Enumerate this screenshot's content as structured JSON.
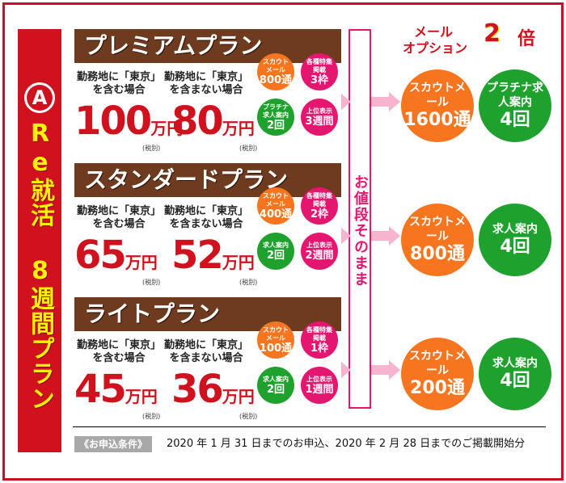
{
  "sidebar": {
    "badge": "A",
    "title": "Re就活 8週間プラン"
  },
  "option": {
    "title_line1": "メール",
    "title_line2": "オプション",
    "multiplier": "2",
    "multiplier_unit": "倍"
  },
  "middle_label": "お値段そのまま",
  "plans": [
    {
      "name": "プレミアムプラン",
      "cond_tokyo": "勤務地に「東京」を含む場合",
      "cond_no_tokyo": "勤務地に「東京」を含まない場合",
      "price_tokyo": "100",
      "price_no_tokyo": "80",
      "unit": "万円",
      "tax": "(税別)",
      "circles": [
        {
          "label": "スカウトメール",
          "value": "800通",
          "color": "orange"
        },
        {
          "label": "各種特集掲載",
          "value": "3枠",
          "color": "pink"
        },
        {
          "label": "プラチナ求人案内",
          "value": "2回",
          "color": "green"
        },
        {
          "label": "上位表示",
          "value": "3週間",
          "color": "pink"
        }
      ],
      "option_circles": [
        {
          "label": "スカウトメール",
          "value": "1600通",
          "color": "orange"
        },
        {
          "label": "プラチナ求人案内",
          "value": "4回",
          "color": "green"
        }
      ]
    },
    {
      "name": "スタンダードプラン",
      "cond_tokyo": "勤務地に「東京」を含む場合",
      "cond_no_tokyo": "勤務地に「東京」を含まない場合",
      "price_tokyo": "65",
      "price_no_tokyo": "52",
      "unit": "万円",
      "tax": "(税別)",
      "circles": [
        {
          "label": "スカウトメール",
          "value": "400通",
          "color": "orange"
        },
        {
          "label": "各種特集掲載",
          "value": "2枠",
          "color": "pink"
        },
        {
          "label": "求人案内",
          "value": "2回",
          "color": "green"
        },
        {
          "label": "上位表示",
          "value": "2週間",
          "color": "pink"
        }
      ],
      "option_circles": [
        {
          "label": "スカウトメール",
          "value": "800通",
          "color": "orange"
        },
        {
          "label": "求人案内",
          "value": "4回",
          "color": "green"
        }
      ]
    },
    {
      "name": "ライトプラン",
      "cond_tokyo": "勤務地に「東京」を含む場合",
      "cond_no_tokyo": "勤務地に「東京」を含まない場合",
      "price_tokyo": "45",
      "price_no_tokyo": "36",
      "unit": "万円",
      "tax": "(税別)",
      "circles": [
        {
          "label": "スカウトメール",
          "value": "100通",
          "color": "orange"
        },
        {
          "label": "各種特集掲載",
          "value": "1枠",
          "color": "pink"
        },
        {
          "label": "求人案内",
          "value": "2回",
          "color": "green"
        },
        {
          "label": "上位表示",
          "value": "1週間",
          "color": "pink"
        }
      ],
      "option_circles": [
        {
          "label": "スカウトメール",
          "value": "200通",
          "color": "orange"
        },
        {
          "label": "求人案内",
          "value": "4回",
          "color": "green"
        }
      ]
    }
  ],
  "footer": {
    "label": "《お申込条件》",
    "text": "2020 年 1 月 31 日までのお申込、2020 年 2 月 28 日までのご掲載開始分"
  },
  "colors": {
    "red": "#d0121f",
    "brown": "#6e3b1f",
    "orange": "#f7751e",
    "green": "#1fa12d",
    "pink": "#e5166f",
    "yellow": "#fff200"
  }
}
